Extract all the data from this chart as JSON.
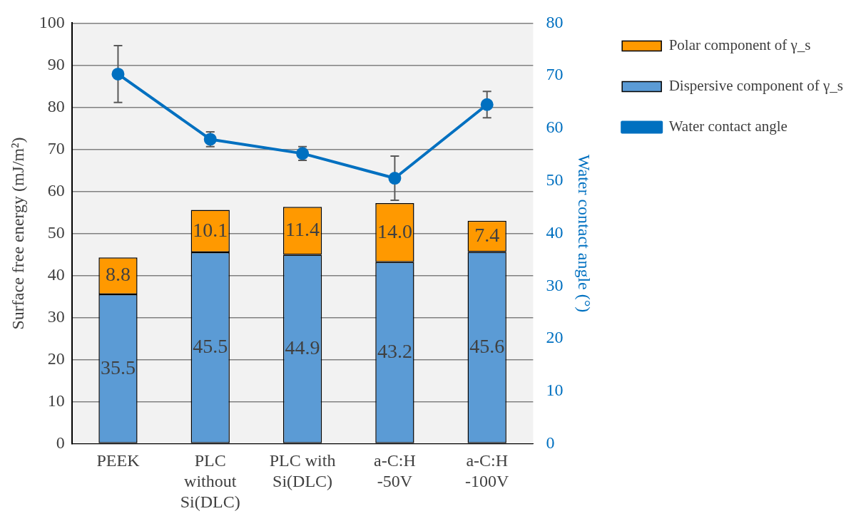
{
  "chart_data": {
    "type": "bar",
    "stacked": true,
    "categories": [
      "PEEK",
      "PLC without Si(DLC)",
      "PLC with Si(DLC)",
      "a-C:H -50V",
      "a-C:H -100V"
    ],
    "ylabel": "Surface free energy (mJ/m²)",
    "y2label": "Water contact angle (°)",
    "ylim": [
      0,
      100
    ],
    "yticks": [
      0,
      10,
      20,
      30,
      40,
      50,
      60,
      70,
      80,
      90,
      100
    ],
    "y2lim": [
      0,
      80
    ],
    "y2ticks": [
      0,
      10,
      20,
      30,
      40,
      50,
      60,
      70,
      80
    ],
    "grid": "y",
    "legend": "top right",
    "series": [
      {
        "name": "Dispersive component of γ_s",
        "color": "#5b9bd5",
        "values": [
          35.5,
          45.5,
          44.9,
          43.2,
          45.6
        ],
        "value_labels": [
          "35.5",
          "45.5",
          "44.9",
          "43.2",
          "45.6"
        ]
      },
      {
        "name": "Polar component of γ_s",
        "color": "#ff9900",
        "values": [
          8.8,
          10.1,
          11.4,
          14.0,
          7.4
        ],
        "value_labels": [
          "8.8",
          "10.1",
          "11.4",
          "14.0",
          "7.4"
        ]
      },
      {
        "name": "Water contact angle",
        "type": "line",
        "axis": "y2",
        "color": "#0070c0",
        "marker": "circle",
        "values": [
          70.3,
          57.9,
          55.2,
          50.5,
          64.5
        ],
        "errors": [
          5.4,
          1.4,
          1.3,
          4.2,
          2.5
        ]
      }
    ]
  }
}
